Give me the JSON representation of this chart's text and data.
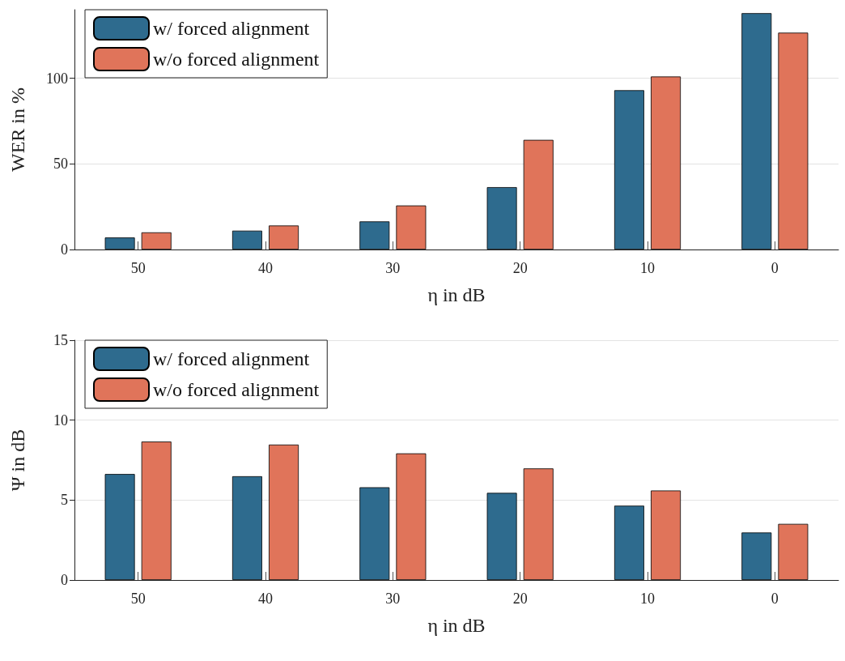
{
  "chart_data": [
    {
      "type": "bar",
      "xlabel": "η in dB",
      "ylabel": "WER in %",
      "categories": [
        "50",
        "40",
        "30",
        "20",
        "10",
        "0"
      ],
      "series": [
        {
          "name": "w/ forced alignment",
          "color": "#2e6b8e",
          "values": [
            7,
            11,
            16.4,
            36.4,
            93,
            138
          ]
        },
        {
          "name": "w/o forced alignment",
          "color": "#e0745a",
          "values": [
            10,
            14,
            25.7,
            64,
            101,
            126.6
          ]
        }
      ],
      "ylim": [
        0,
        140
      ],
      "yticks": [
        0,
        50,
        100
      ],
      "grid": "y",
      "legend": "top left"
    },
    {
      "type": "bar",
      "xlabel": "η in dB",
      "ylabel": "Ψ in dB",
      "categories": [
        "50",
        "40",
        "30",
        "20",
        "10",
        "0"
      ],
      "series": [
        {
          "name": "w/ forced alignment",
          "color": "#2e6b8e",
          "values": [
            6.63,
            6.49,
            5.8,
            5.45,
            4.65,
            2.97
          ]
        },
        {
          "name": "w/o forced alignment",
          "color": "#e0745a",
          "values": [
            8.66,
            8.47,
            7.92,
            6.98,
            5.6,
            3.51
          ]
        }
      ],
      "ylim": [
        0,
        15
      ],
      "yticks": [
        0,
        5,
        10,
        15
      ],
      "grid": "y",
      "legend": "top left"
    }
  ]
}
